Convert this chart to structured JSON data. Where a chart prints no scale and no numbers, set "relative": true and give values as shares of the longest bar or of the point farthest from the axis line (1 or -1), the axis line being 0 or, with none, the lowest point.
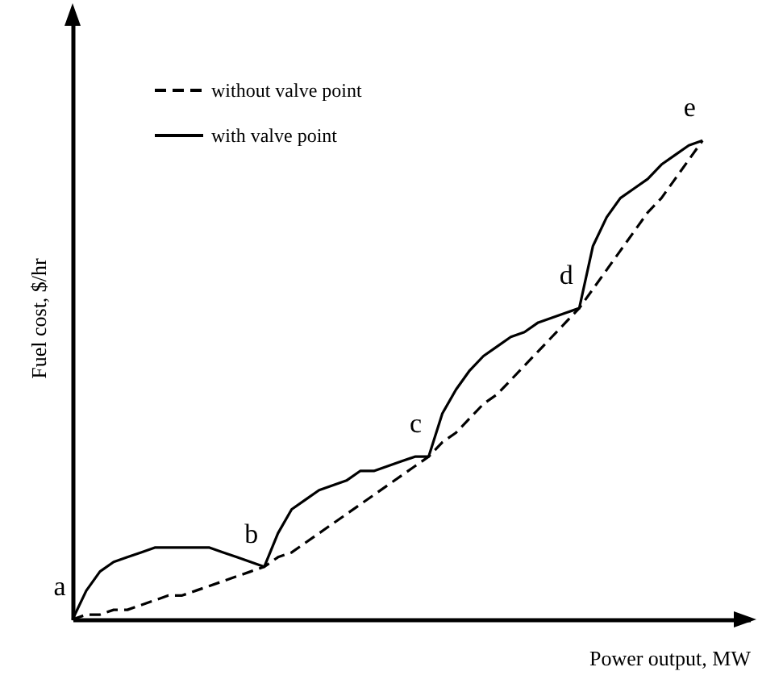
{
  "chart_data": {
    "type": "line",
    "relative": true,
    "xlabel": "Power output, MW",
    "ylabel": "Fuel cost, $/hr",
    "legend": "top left",
    "grid": false,
    "tick_labels": false,
    "marker": "none",
    "annotations": [
      "a",
      "b",
      "c",
      "d",
      "e"
    ],
    "categories": [
      null,
      null,
      null,
      null,
      null,
      null,
      null,
      null,
      null,
      null,
      null,
      null,
      null,
      null,
      null,
      null,
      null,
      null,
      null,
      null,
      null,
      null,
      null,
      null,
      null,
      null,
      null,
      null,
      null,
      null,
      null,
      null,
      null,
      null,
      null,
      null,
      null,
      null,
      null,
      null,
      null,
      null,
      null,
      null,
      null,
      null,
      null
    ],
    "series": [
      {
        "name": "without valve point",
        "color": "#000000",
        "line_style": "dashed",
        "values": [
          0,
          0.01,
          0.01,
          0.02,
          0.02,
          0.03,
          0.04,
          0.05,
          0.05,
          0.06,
          0.07,
          0.08,
          0.09,
          0.1,
          0.11,
          0.13,
          0.14,
          0.16,
          0.18,
          0.2,
          0.22,
          0.24,
          0.26,
          0.28,
          0.3,
          0.32,
          0.34,
          0.37,
          0.39,
          0.42,
          0.45,
          0.47,
          0.5,
          0.53,
          0.56,
          0.59,
          0.62,
          0.65,
          0.69,
          0.73,
          0.77,
          0.81,
          0.85,
          0.88,
          0.92,
          0.96,
          1
        ]
      },
      {
        "name": "with valve point",
        "color": "#000000",
        "line_style": "solid",
        "values": [
          0,
          0.06,
          0.1,
          0.12,
          0.13,
          0.14,
          0.15,
          0.15,
          0.15,
          0.15,
          0.15,
          0.14,
          0.13,
          0.12,
          0.11,
          0.18,
          0.23,
          0.25,
          0.27,
          0.28,
          0.29,
          0.31,
          0.31,
          0.32,
          0.33,
          0.34,
          0.34,
          0.43,
          0.48,
          0.52,
          0.55,
          0.57,
          0.59,
          0.6,
          0.62,
          0.63,
          0.64,
          0.65,
          0.78,
          0.84,
          0.88,
          0.9,
          0.92,
          0.95,
          0.97,
          0.99,
          1
        ]
      }
    ]
  }
}
